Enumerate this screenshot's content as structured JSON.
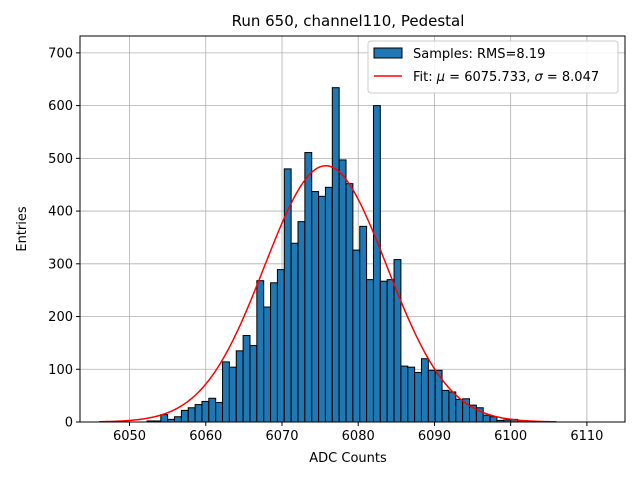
{
  "chart_data": {
    "type": "histogram",
    "title": "Run 650, channel110, Pedestal",
    "xlabel": "ADC Counts",
    "ylabel": "Entries",
    "xlim": [
      6043.5,
      6115
    ],
    "ylim": [
      0,
      732
    ],
    "grid": true,
    "bar_color": "#1f77b4",
    "fit_color": "#ff0000",
    "xticks": [
      6050,
      6060,
      6070,
      6080,
      6090,
      6100,
      6110
    ],
    "yticks": [
      0,
      100,
      200,
      300,
      400,
      500,
      600,
      700
    ],
    "bin_start": 6046,
    "bin_width": 0.9,
    "bin_counts": [
      0,
      0,
      0,
      0,
      0,
      0,
      0,
      2,
      2,
      14,
      5,
      10,
      22,
      27,
      33,
      39,
      45,
      37,
      114,
      104,
      135,
      164,
      145,
      268,
      218,
      264,
      289,
      480,
      339,
      380,
      511,
      437,
      428,
      445,
      634,
      497,
      452,
      326,
      371,
      270,
      600,
      267,
      270,
      308,
      106,
      104,
      94,
      120,
      98,
      98,
      60,
      57,
      43,
      44,
      32,
      27,
      13,
      10,
      3,
      4,
      5,
      2,
      2,
      0,
      0,
      0,
      0,
      0,
      0,
      0,
      0,
      0,
      0,
      0,
      0,
      0,
      0
    ],
    "fit": {
      "mu": 6075.733,
      "sigma": 8.047,
      "amplitude": 486,
      "x_start": 6046,
      "x_end": 6106
    },
    "legend": {
      "position": "top-right",
      "entries": [
        {
          "kind": "bar",
          "label": "Samples: RMS=8.19"
        },
        {
          "kind": "line",
          "label_prefix": "Fit: ",
          "mu_symbol": "μ",
          "mu_text": " = 6075.733, ",
          "sigma_symbol": "σ",
          "sigma_text": " = 8.047"
        }
      ]
    }
  }
}
